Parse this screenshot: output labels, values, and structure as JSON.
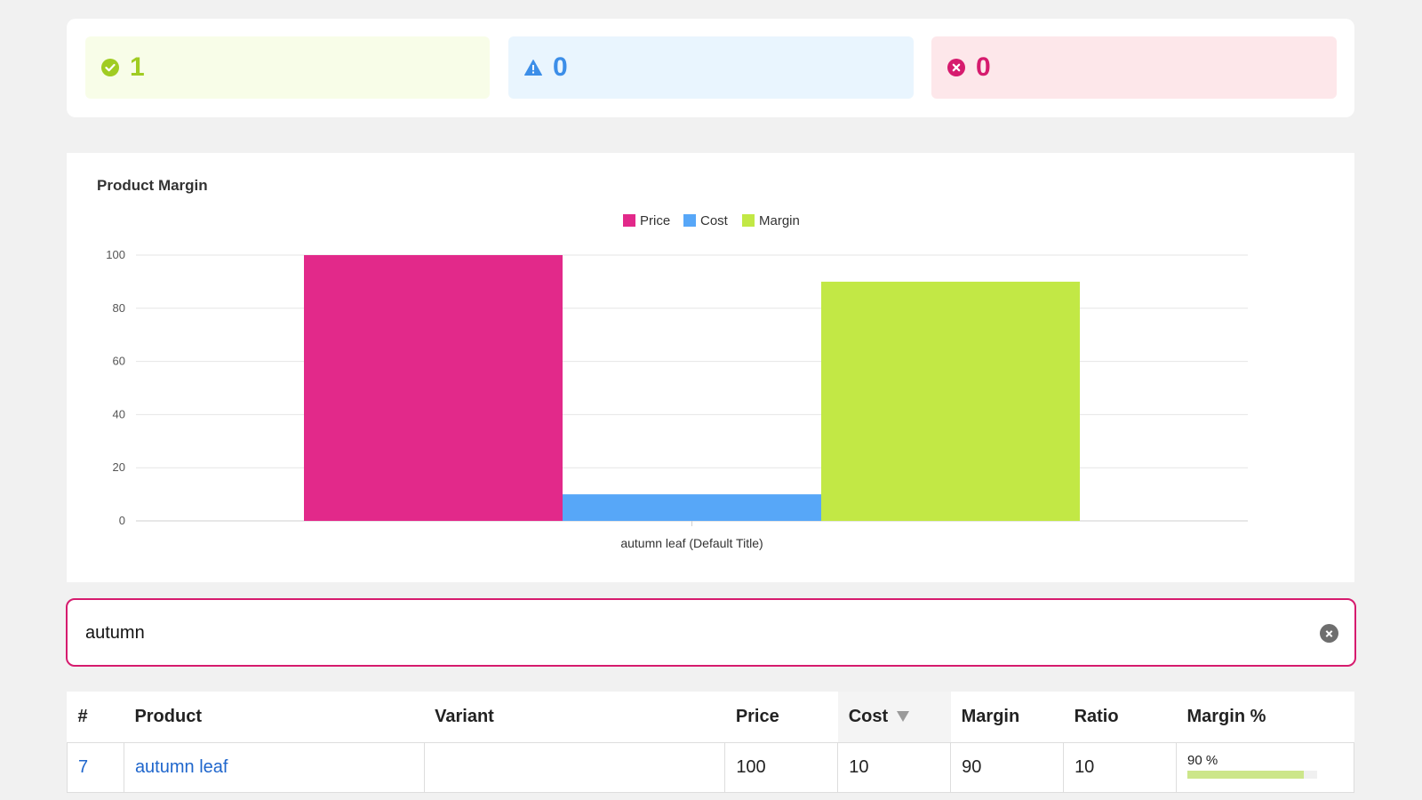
{
  "stats": {
    "success": {
      "count": "1",
      "color": "#a0cc22",
      "icon": "check-circle-icon"
    },
    "warning": {
      "count": "0",
      "color": "#3c8ee8",
      "icon": "warning-triangle-icon"
    },
    "error": {
      "count": "0",
      "color": "#d61b6e",
      "icon": "x-circle-icon"
    }
  },
  "chart": {
    "title": "Product Margin"
  },
  "chart_data": {
    "type": "bar",
    "title": "Product Margin",
    "categories": [
      "autumn leaf (Default Title)"
    ],
    "series": [
      {
        "name": "Price",
        "values": [
          100
        ],
        "color": "#e2298a"
      },
      {
        "name": "Cost",
        "values": [
          10
        ],
        "color": "#57a7f8"
      },
      {
        "name": "Margin",
        "values": [
          90
        ],
        "color": "#c2e845"
      }
    ],
    "ylim": [
      0,
      100
    ],
    "yticks": [
      0,
      20,
      40,
      60,
      80,
      100
    ],
    "grid": true,
    "legend": "top-center"
  },
  "search": {
    "value": "autumn"
  },
  "table": {
    "headers": [
      "#",
      "Product",
      "Variant",
      "Price",
      "Cost",
      "Margin",
      "Ratio",
      "Margin %"
    ],
    "sorted_column": "Cost",
    "rows": [
      {
        "id": "7",
        "product": "autumn leaf",
        "variant": "",
        "price": "100",
        "cost": "10",
        "margin": "90",
        "ratio": "10",
        "margin_pct_label": "90 %",
        "margin_pct": 90
      }
    ]
  }
}
